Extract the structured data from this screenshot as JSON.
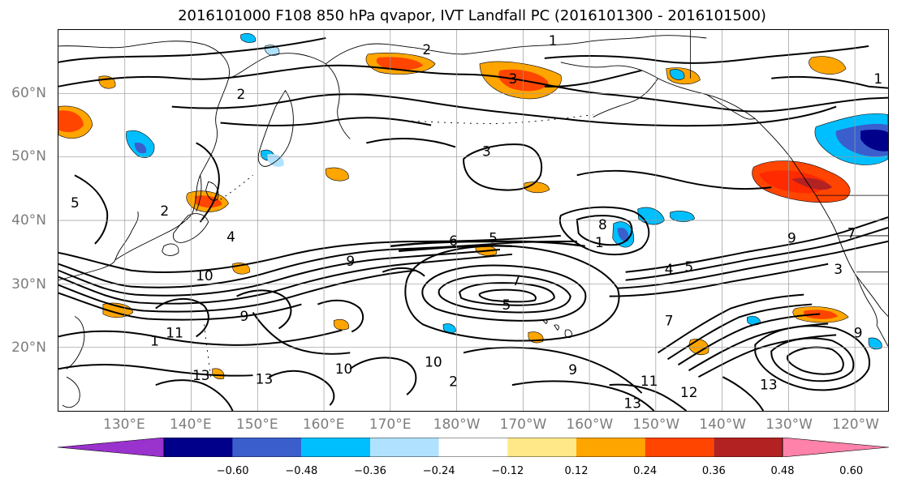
{
  "title": "2016101000 F108 850 hPa qvapor, IVT Landfall PC (2016101300 - 2016101500)",
  "map": {
    "projection": "PlateCarree",
    "lon_range_deg_east": [
      120,
      245
    ],
    "lat_range_deg": [
      10,
      70
    ],
    "gridlines": true,
    "lat_labels": [
      {
        "text": "60°N",
        "lat": 60
      },
      {
        "text": "50°N",
        "lat": 50
      },
      {
        "text": "40°N",
        "lat": 40
      },
      {
        "text": "30°N",
        "lat": 30
      },
      {
        "text": "20°N",
        "lat": 20
      }
    ],
    "lon_labels": [
      {
        "text": "130°E",
        "lon": 130
      },
      {
        "text": "140°E",
        "lon": 140
      },
      {
        "text": "150°E",
        "lon": 150
      },
      {
        "text": "160°E",
        "lon": 160
      },
      {
        "text": "170°E",
        "lon": 170
      },
      {
        "text": "180°W",
        "lon": 180
      },
      {
        "text": "170°W",
        "lon": 190
      },
      {
        "text": "160°W",
        "lon": 200
      },
      {
        "text": "150°W",
        "lon": 210
      },
      {
        "text": "140°W",
        "lon": 220
      },
      {
        "text": "130°W",
        "lon": 230
      },
      {
        "text": "120°W",
        "lon": 240
      }
    ],
    "contour_labels": [
      {
        "text": "1",
        "lon": 194.5,
        "lat": 68.2
      },
      {
        "text": "2",
        "lon": 175.5,
        "lat": 66.8
      },
      {
        "text": "3",
        "lon": 188.5,
        "lat": 62.2
      },
      {
        "text": "2",
        "lon": 147.5,
        "lat": 59.8
      },
      {
        "text": "1",
        "lon": 243.5,
        "lat": 62.2
      },
      {
        "text": "3",
        "lon": 184.5,
        "lat": 50.8
      },
      {
        "text": "5",
        "lon": 122.5,
        "lat": 42.7
      },
      {
        "text": "2",
        "lon": 136,
        "lat": 41.4
      },
      {
        "text": "8",
        "lon": 202,
        "lat": 39.2
      },
      {
        "text": "4",
        "lon": 146,
        "lat": 37.3
      },
      {
        "text": "1",
        "lon": 201.5,
        "lat": 36.4
      },
      {
        "text": "6",
        "lon": 179.5,
        "lat": 36.7
      },
      {
        "text": "5",
        "lon": 185.5,
        "lat": 37.1
      },
      {
        "text": "9",
        "lon": 164,
        "lat": 33.5
      },
      {
        "text": "4",
        "lon": 212,
        "lat": 32.2
      },
      {
        "text": "5",
        "lon": 215,
        "lat": 32.6
      },
      {
        "text": "9",
        "lon": 230.5,
        "lat": 37.1
      },
      {
        "text": "3",
        "lon": 237.5,
        "lat": 32.2
      },
      {
        "text": "7",
        "lon": 239.5,
        "lat": 37.9
      },
      {
        "text": "10",
        "lon": 142,
        "lat": 31.2
      },
      {
        "text": "7",
        "lon": 189,
        "lat": 30.4
      },
      {
        "text": "5",
        "lon": 187.5,
        "lat": 26.6
      },
      {
        "text": "9",
        "lon": 148,
        "lat": 24.8
      },
      {
        "text": "7",
        "lon": 212,
        "lat": 24.1
      },
      {
        "text": "1",
        "lon": 134.5,
        "lat": 20.9
      },
      {
        "text": "11",
        "lon": 137.5,
        "lat": 22.2
      },
      {
        "text": "9",
        "lon": 240.5,
        "lat": 22.2
      },
      {
        "text": "10",
        "lon": 176.5,
        "lat": 17.6
      },
      {
        "text": "9",
        "lon": 197.5,
        "lat": 16.4
      },
      {
        "text": "13",
        "lon": 141.5,
        "lat": 15.5
      },
      {
        "text": "13",
        "lon": 151,
        "lat": 14.9
      },
      {
        "text": "10",
        "lon": 163,
        "lat": 16.5
      },
      {
        "text": "2",
        "lon": 179.5,
        "lat": 14.5
      },
      {
        "text": "11",
        "lon": 209,
        "lat": 14.6
      },
      {
        "text": "12",
        "lon": 215,
        "lat": 12.8
      },
      {
        "text": "13",
        "lon": 227,
        "lat": 14
      },
      {
        "text": "13",
        "lon": 206.5,
        "lat": 11.1
      }
    ]
  },
  "colorbar": {
    "extend": "both",
    "levels": [
      -0.72,
      -0.6,
      -0.48,
      -0.36,
      -0.24,
      -0.12,
      0.12,
      0.24,
      0.36,
      0.48,
      0.6,
      0.72
    ],
    "colors": [
      "#9a32cd",
      "#00008b",
      "#3a5fcd",
      "#00bfff",
      "#b0e2ff",
      "#ffffff",
      "#ffe888",
      "#ffa500",
      "#ff4500",
      "#b22222",
      "#ff82ab"
    ],
    "tick_labels": [
      "−0.60",
      "−0.48",
      "−0.36",
      "−0.24",
      "−0.12",
      "0.12",
      "0.24",
      "0.36",
      "0.48",
      "0.60"
    ]
  }
}
